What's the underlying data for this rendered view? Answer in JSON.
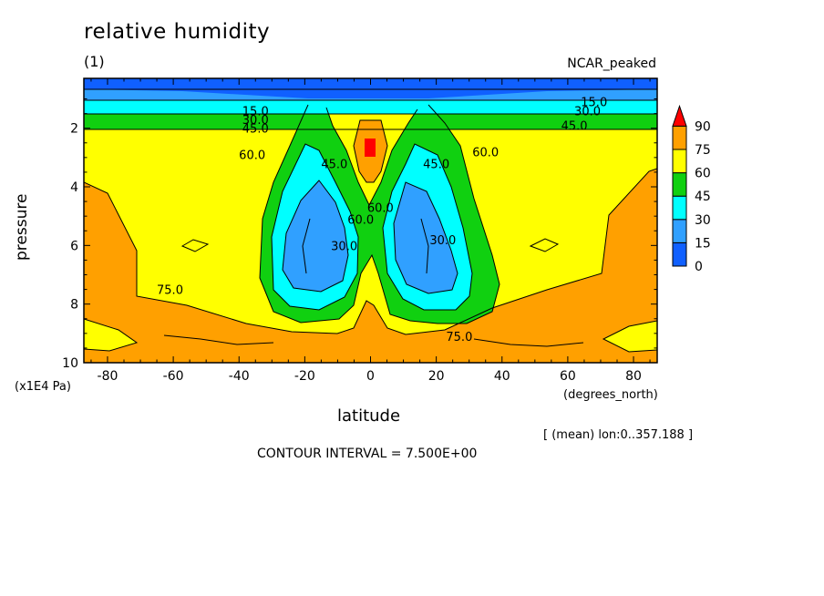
{
  "chart_data": {
    "type": "heatmap",
    "title": "relative humidity",
    "subtitle": "(1)",
    "dataset": "NCAR_peaked",
    "xlabel": "latitude",
    "xunit": "(degrees_north)",
    "ylabel": "pressure",
    "yunit": "(x1E4 Pa)",
    "xlim": [
      -87.2,
      87.2
    ],
    "ylim": [
      10,
      0.3
    ],
    "x_ticks": [
      "-80",
      "-60",
      "-40",
      "-20",
      "0",
      "20",
      "40",
      "60",
      "80"
    ],
    "y_ticks": [
      "2",
      "4",
      "6",
      "8",
      "10"
    ],
    "note": "[ (mean) lon:0..357.188 ]",
    "contour_interval_text": "CONTOUR INTERVAL = 7.500E+00",
    "colorbar": {
      "levels": [
        "0",
        "15",
        "30",
        "45",
        "60",
        "75",
        "90"
      ],
      "colors": [
        "#1060ff",
        "#30a0ff",
        "#00ffff",
        "#10d010",
        "#ffff00",
        "#ffa000",
        "#ff0000"
      ]
    },
    "contour_labels": [
      {
        "text": "15.0",
        "lat": -35,
        "p": 1.4
      },
      {
        "text": "30.0",
        "lat": -35,
        "p": 1.7
      },
      {
        "text": "45.0",
        "lat": -35,
        "p": 2.0
      },
      {
        "text": "60.0",
        "lat": -36,
        "p": 2.9
      },
      {
        "text": "45.0",
        "lat": -11,
        "p": 3.2
      },
      {
        "text": "60.0",
        "lat": -3,
        "p": 5.1
      },
      {
        "text": "60.0",
        "lat": 3,
        "p": 4.7
      },
      {
        "text": "30.0",
        "lat": -8,
        "p": 6.0
      },
      {
        "text": "30.0",
        "lat": 22,
        "p": 5.8
      },
      {
        "text": "45.0",
        "lat": 20,
        "p": 3.2
      },
      {
        "text": "60.0",
        "lat": 35,
        "p": 2.8
      },
      {
        "text": "15.0",
        "lat": 68,
        "p": 1.1
      },
      {
        "text": "30.0",
        "lat": 66,
        "p": 1.4
      },
      {
        "text": "45.0",
        "lat": 62,
        "p": 1.9
      },
      {
        "text": "75.0",
        "lat": -61,
        "p": 7.5
      },
      {
        "text": "75.0",
        "lat": 27,
        "p": 9.1
      }
    ]
  }
}
